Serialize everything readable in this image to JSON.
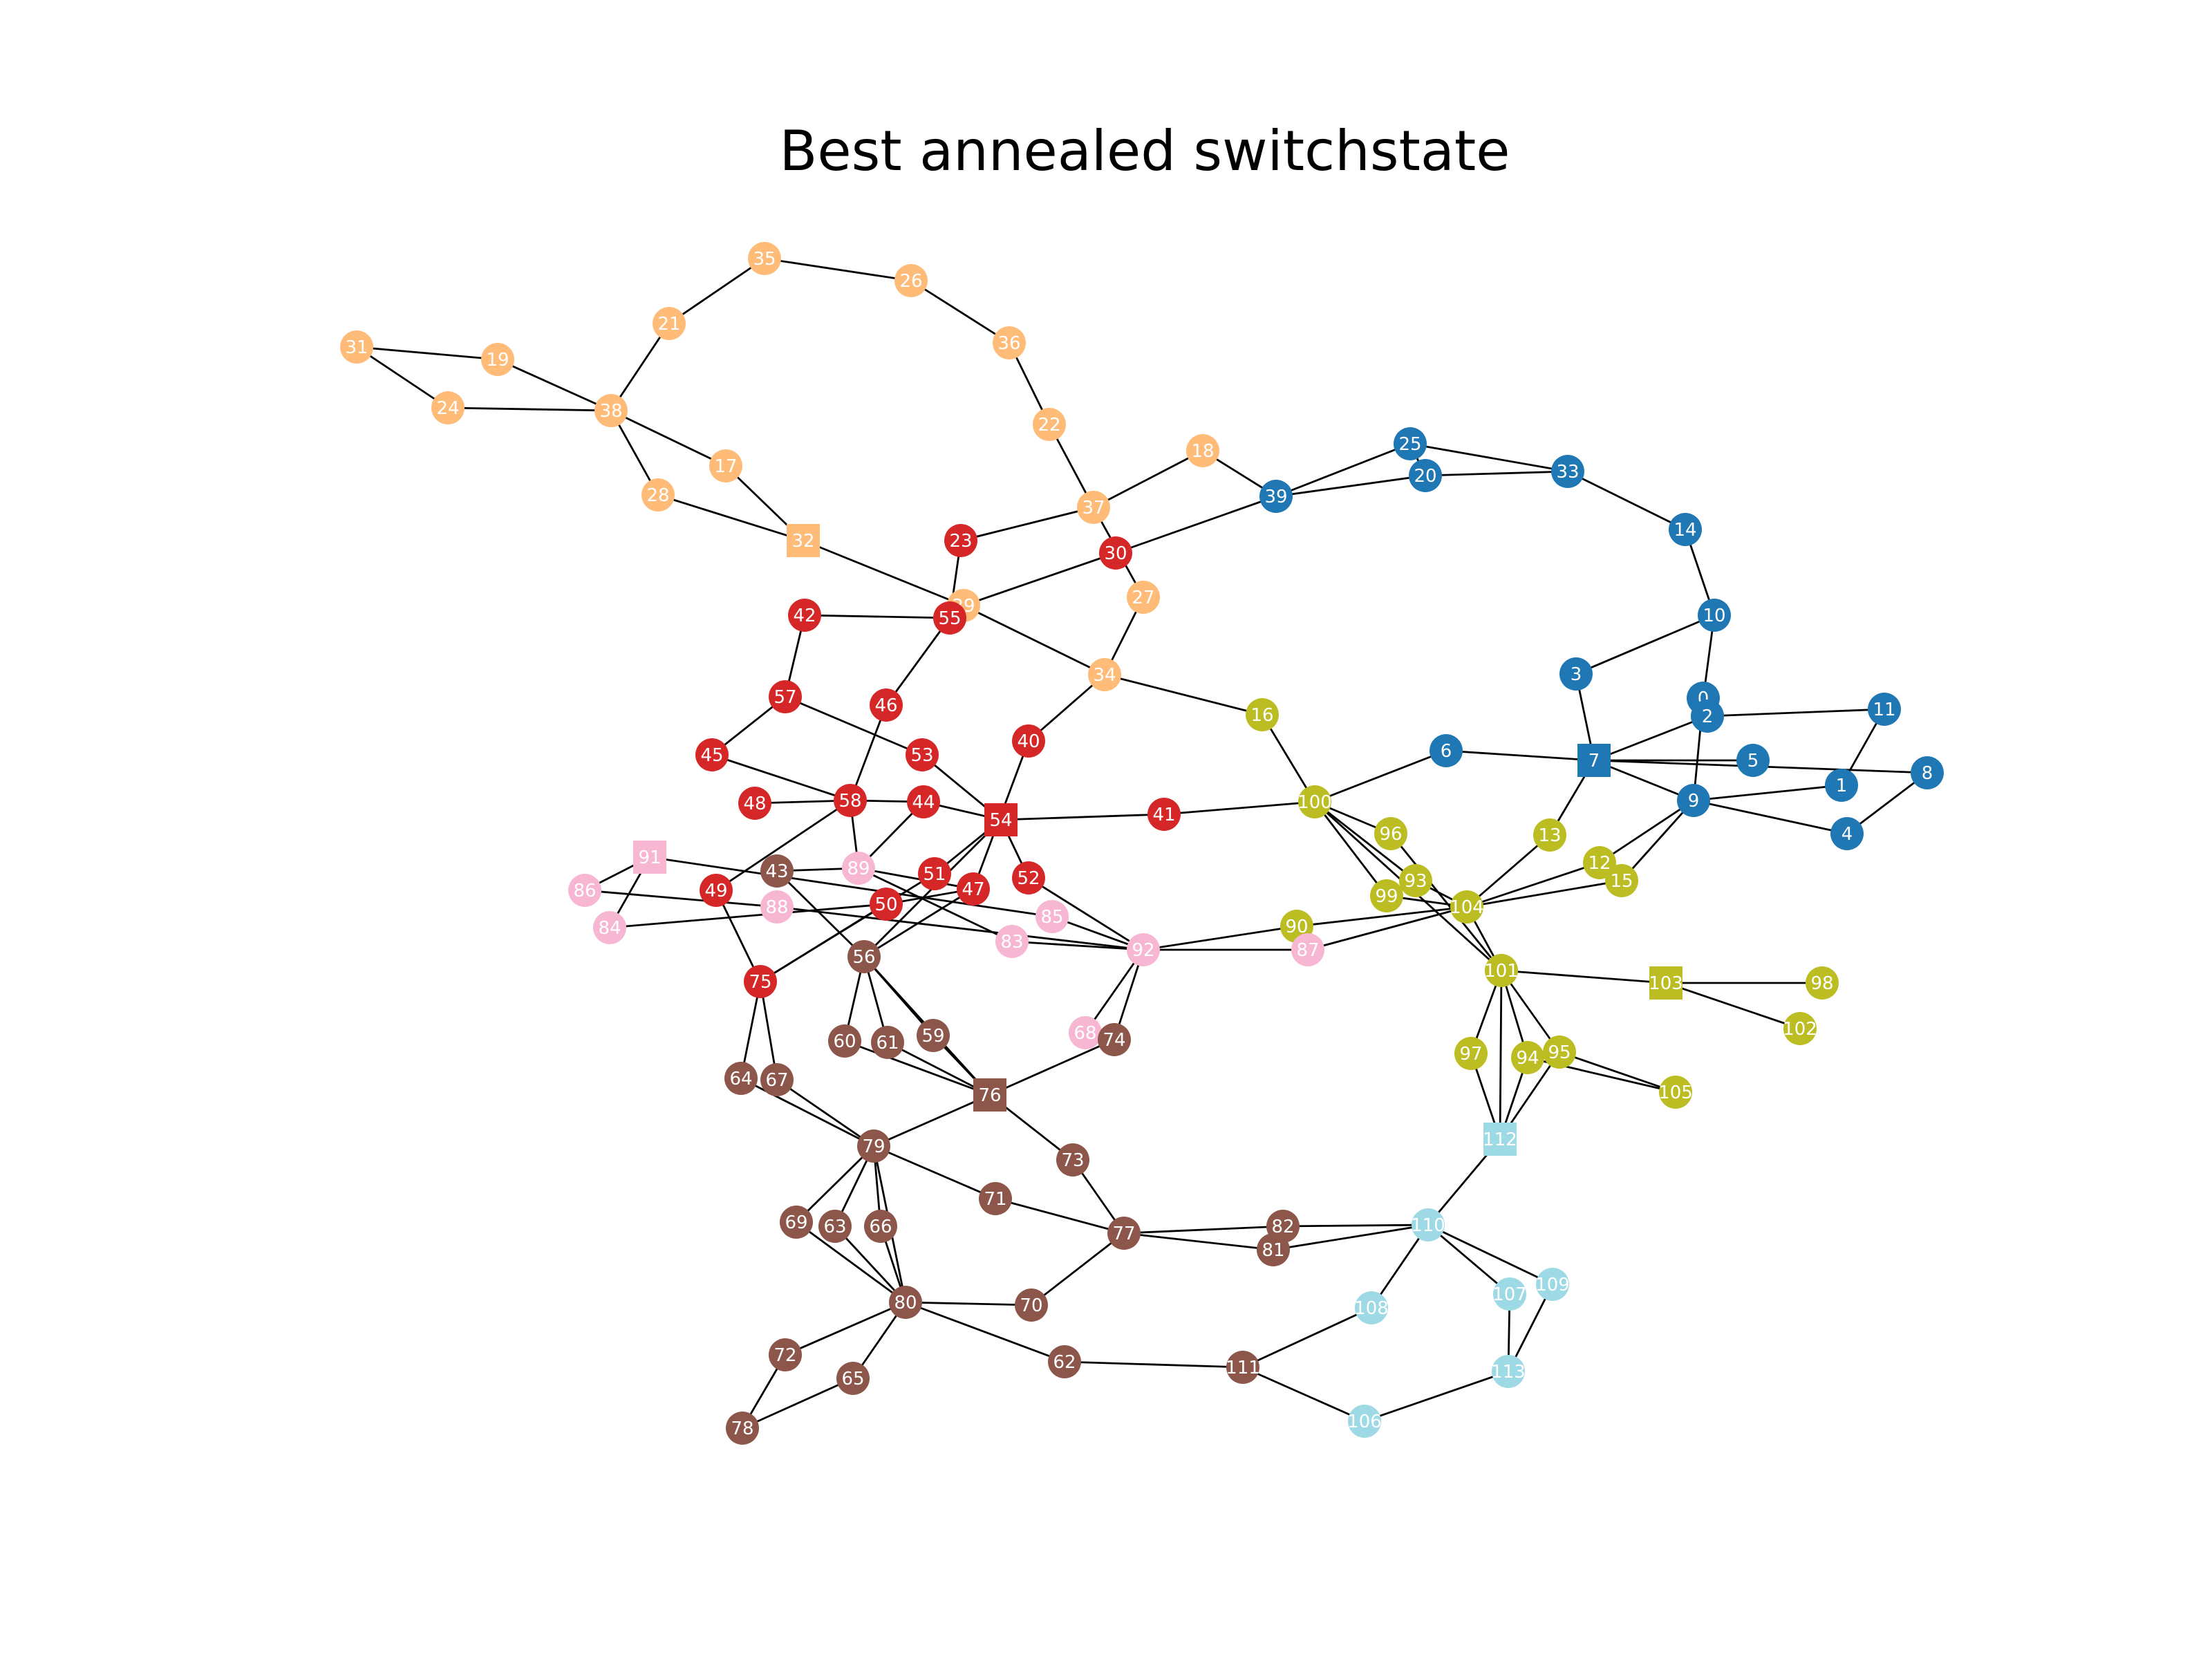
{
  "title": "Best annealed switchstate",
  "colors": {
    "blue": "#1f77b4",
    "orange": "#ffbb78",
    "red": "#d62728",
    "olive": "#bcbd22",
    "pink": "#f7b6d2",
    "brown": "#8c564b",
    "cyan": "#9edae5",
    "edge": "#000000",
    "label": "#ffffff"
  },
  "nodes": [
    {
      "id": "0",
      "group": "blue",
      "shape": "circle"
    },
    {
      "id": "1",
      "group": "blue",
      "shape": "circle"
    },
    {
      "id": "2",
      "group": "blue",
      "shape": "circle"
    },
    {
      "id": "3",
      "group": "blue",
      "shape": "circle"
    },
    {
      "id": "4",
      "group": "blue",
      "shape": "circle"
    },
    {
      "id": "5",
      "group": "blue",
      "shape": "circle"
    },
    {
      "id": "6",
      "group": "blue",
      "shape": "circle"
    },
    {
      "id": "7",
      "group": "blue",
      "shape": "square"
    },
    {
      "id": "8",
      "group": "blue",
      "shape": "circle"
    },
    {
      "id": "9",
      "group": "blue",
      "shape": "circle"
    },
    {
      "id": "10",
      "group": "blue",
      "shape": "circle"
    },
    {
      "id": "11",
      "group": "blue",
      "shape": "circle"
    },
    {
      "id": "14",
      "group": "blue",
      "shape": "circle"
    },
    {
      "id": "20",
      "group": "blue",
      "shape": "circle"
    },
    {
      "id": "25",
      "group": "blue",
      "shape": "circle"
    },
    {
      "id": "33",
      "group": "blue",
      "shape": "circle"
    },
    {
      "id": "39",
      "group": "blue",
      "shape": "circle"
    },
    {
      "id": "17",
      "group": "orange",
      "shape": "circle"
    },
    {
      "id": "18",
      "group": "orange",
      "shape": "circle"
    },
    {
      "id": "19",
      "group": "orange",
      "shape": "circle"
    },
    {
      "id": "21",
      "group": "orange",
      "shape": "circle"
    },
    {
      "id": "22",
      "group": "orange",
      "shape": "circle"
    },
    {
      "id": "24",
      "group": "orange",
      "shape": "circle"
    },
    {
      "id": "26",
      "group": "orange",
      "shape": "circle"
    },
    {
      "id": "27",
      "group": "orange",
      "shape": "circle"
    },
    {
      "id": "28",
      "group": "orange",
      "shape": "circle"
    },
    {
      "id": "29",
      "group": "orange",
      "shape": "circle"
    },
    {
      "id": "31",
      "group": "orange",
      "shape": "circle"
    },
    {
      "id": "32",
      "group": "orange",
      "shape": "square"
    },
    {
      "id": "34",
      "group": "orange",
      "shape": "circle"
    },
    {
      "id": "35",
      "group": "orange",
      "shape": "circle"
    },
    {
      "id": "36",
      "group": "orange",
      "shape": "circle"
    },
    {
      "id": "37",
      "group": "orange",
      "shape": "circle"
    },
    {
      "id": "38",
      "group": "orange",
      "shape": "circle"
    },
    {
      "id": "23",
      "group": "red",
      "shape": "circle"
    },
    {
      "id": "30",
      "group": "red",
      "shape": "circle"
    },
    {
      "id": "40",
      "group": "red",
      "shape": "circle"
    },
    {
      "id": "41",
      "group": "red",
      "shape": "circle"
    },
    {
      "id": "42",
      "group": "red",
      "shape": "circle"
    },
    {
      "id": "44",
      "group": "red",
      "shape": "circle"
    },
    {
      "id": "45",
      "group": "red",
      "shape": "circle"
    },
    {
      "id": "46",
      "group": "red",
      "shape": "circle"
    },
    {
      "id": "47",
      "group": "red",
      "shape": "circle"
    },
    {
      "id": "48",
      "group": "red",
      "shape": "circle"
    },
    {
      "id": "49",
      "group": "red",
      "shape": "circle"
    },
    {
      "id": "50",
      "group": "red",
      "shape": "circle"
    },
    {
      "id": "51",
      "group": "red",
      "shape": "circle"
    },
    {
      "id": "52",
      "group": "red",
      "shape": "circle"
    },
    {
      "id": "53",
      "group": "red",
      "shape": "circle"
    },
    {
      "id": "54",
      "group": "red",
      "shape": "square"
    },
    {
      "id": "55",
      "group": "red",
      "shape": "circle"
    },
    {
      "id": "57",
      "group": "red",
      "shape": "circle"
    },
    {
      "id": "58",
      "group": "red",
      "shape": "circle"
    },
    {
      "id": "75",
      "group": "red",
      "shape": "circle"
    },
    {
      "id": "12",
      "group": "olive",
      "shape": "circle"
    },
    {
      "id": "13",
      "group": "olive",
      "shape": "circle"
    },
    {
      "id": "15",
      "group": "olive",
      "shape": "circle"
    },
    {
      "id": "16",
      "group": "olive",
      "shape": "circle"
    },
    {
      "id": "90",
      "group": "olive",
      "shape": "circle"
    },
    {
      "id": "93",
      "group": "olive",
      "shape": "circle"
    },
    {
      "id": "94",
      "group": "olive",
      "shape": "circle"
    },
    {
      "id": "95",
      "group": "olive",
      "shape": "circle"
    },
    {
      "id": "96",
      "group": "olive",
      "shape": "circle"
    },
    {
      "id": "97",
      "group": "olive",
      "shape": "circle"
    },
    {
      "id": "98",
      "group": "olive",
      "shape": "circle"
    },
    {
      "id": "99",
      "group": "olive",
      "shape": "circle"
    },
    {
      "id": "100",
      "group": "olive",
      "shape": "circle"
    },
    {
      "id": "101",
      "group": "olive",
      "shape": "circle"
    },
    {
      "id": "102",
      "group": "olive",
      "shape": "circle"
    },
    {
      "id": "103",
      "group": "olive",
      "shape": "square"
    },
    {
      "id": "104",
      "group": "olive",
      "shape": "circle"
    },
    {
      "id": "105",
      "group": "olive",
      "shape": "circle"
    },
    {
      "id": "68",
      "group": "pink",
      "shape": "circle"
    },
    {
      "id": "83",
      "group": "pink",
      "shape": "circle"
    },
    {
      "id": "84",
      "group": "pink",
      "shape": "circle"
    },
    {
      "id": "85",
      "group": "pink",
      "shape": "circle"
    },
    {
      "id": "86",
      "group": "pink",
      "shape": "circle"
    },
    {
      "id": "87",
      "group": "pink",
      "shape": "circle"
    },
    {
      "id": "88",
      "group": "pink",
      "shape": "circle"
    },
    {
      "id": "89",
      "group": "pink",
      "shape": "circle"
    },
    {
      "id": "91",
      "group": "pink",
      "shape": "square"
    },
    {
      "id": "92",
      "group": "pink",
      "shape": "circle"
    },
    {
      "id": "43",
      "group": "brown",
      "shape": "circle"
    },
    {
      "id": "56",
      "group": "brown",
      "shape": "circle"
    },
    {
      "id": "59",
      "group": "brown",
      "shape": "circle"
    },
    {
      "id": "60",
      "group": "brown",
      "shape": "circle"
    },
    {
      "id": "61",
      "group": "brown",
      "shape": "circle"
    },
    {
      "id": "62",
      "group": "brown",
      "shape": "circle"
    },
    {
      "id": "63",
      "group": "brown",
      "shape": "circle"
    },
    {
      "id": "64",
      "group": "brown",
      "shape": "circle"
    },
    {
      "id": "65",
      "group": "brown",
      "shape": "circle"
    },
    {
      "id": "66",
      "group": "brown",
      "shape": "circle"
    },
    {
      "id": "67",
      "group": "brown",
      "shape": "circle"
    },
    {
      "id": "69",
      "group": "brown",
      "shape": "circle"
    },
    {
      "id": "70",
      "group": "brown",
      "shape": "circle"
    },
    {
      "id": "71",
      "group": "brown",
      "shape": "circle"
    },
    {
      "id": "72",
      "group": "brown",
      "shape": "circle"
    },
    {
      "id": "73",
      "group": "brown",
      "shape": "circle"
    },
    {
      "id": "74",
      "group": "brown",
      "shape": "circle"
    },
    {
      "id": "76",
      "group": "brown",
      "shape": "square"
    },
    {
      "id": "77",
      "group": "brown",
      "shape": "circle"
    },
    {
      "id": "78",
      "group": "brown",
      "shape": "circle"
    },
    {
      "id": "79",
      "group": "brown",
      "shape": "circle"
    },
    {
      "id": "80",
      "group": "brown",
      "shape": "circle"
    },
    {
      "id": "81",
      "group": "brown",
      "shape": "circle"
    },
    {
      "id": "82",
      "group": "brown",
      "shape": "circle"
    },
    {
      "id": "111",
      "group": "brown",
      "shape": "circle"
    },
    {
      "id": "106",
      "group": "cyan",
      "shape": "circle"
    },
    {
      "id": "107",
      "group": "cyan",
      "shape": "circle"
    },
    {
      "id": "108",
      "group": "cyan",
      "shape": "circle"
    },
    {
      "id": "109",
      "group": "cyan",
      "shape": "circle"
    },
    {
      "id": "110",
      "group": "cyan",
      "shape": "circle"
    },
    {
      "id": "112",
      "group": "cyan",
      "shape": "square"
    },
    {
      "id": "113",
      "group": "cyan",
      "shape": "circle"
    }
  ],
  "edges": [
    [
      "31",
      "19"
    ],
    [
      "31",
      "24"
    ],
    [
      "19",
      "38"
    ],
    [
      "24",
      "38"
    ],
    [
      "38",
      "21"
    ],
    [
      "21",
      "35"
    ],
    [
      "35",
      "26"
    ],
    [
      "26",
      "36"
    ],
    [
      "36",
      "22"
    ],
    [
      "22",
      "37"
    ],
    [
      "38",
      "28"
    ],
    [
      "38",
      "17"
    ],
    [
      "17",
      "32"
    ],
    [
      "28",
      "32"
    ],
    [
      "32",
      "29"
    ],
    [
      "29",
      "34"
    ],
    [
      "37",
      "18"
    ],
    [
      "18",
      "39"
    ],
    [
      "37",
      "23"
    ],
    [
      "23",
      "55"
    ],
    [
      "37",
      "27"
    ],
    [
      "27",
      "34"
    ],
    [
      "30",
      "29"
    ],
    [
      "30",
      "39"
    ],
    [
      "39",
      "25"
    ],
    [
      "39",
      "20"
    ],
    [
      "25",
      "20"
    ],
    [
      "25",
      "33"
    ],
    [
      "20",
      "33"
    ],
    [
      "33",
      "14"
    ],
    [
      "14",
      "10"
    ],
    [
      "10",
      "3"
    ],
    [
      "10",
      "0"
    ],
    [
      "3",
      "7"
    ],
    [
      "0",
      "9"
    ],
    [
      "2",
      "11"
    ],
    [
      "2",
      "7"
    ],
    [
      "11",
      "1"
    ],
    [
      "7",
      "5"
    ],
    [
      "7",
      "8"
    ],
    [
      "7",
      "9"
    ],
    [
      "9",
      "1"
    ],
    [
      "9",
      "4"
    ],
    [
      "4",
      "8"
    ],
    [
      "6",
      "7"
    ],
    [
      "100",
      "6"
    ],
    [
      "34",
      "40"
    ],
    [
      "34",
      "16"
    ],
    [
      "16",
      "100"
    ],
    [
      "40",
      "47"
    ],
    [
      "42",
      "55"
    ],
    [
      "42",
      "57"
    ],
    [
      "57",
      "45"
    ],
    [
      "57",
      "53"
    ],
    [
      "53",
      "54"
    ],
    [
      "55",
      "46"
    ],
    [
      "46",
      "58"
    ],
    [
      "45",
      "58"
    ],
    [
      "48",
      "58"
    ],
    [
      "58",
      "44"
    ],
    [
      "44",
      "54"
    ],
    [
      "54",
      "41"
    ],
    [
      "41",
      "100"
    ],
    [
      "44",
      "89"
    ],
    [
      "58",
      "49"
    ],
    [
      "58",
      "89"
    ],
    [
      "49",
      "75"
    ],
    [
      "75",
      "64"
    ],
    [
      "75",
      "67"
    ],
    [
      "75",
      "51"
    ],
    [
      "51",
      "54"
    ],
    [
      "54",
      "56"
    ],
    [
      "54",
      "52"
    ],
    [
      "52",
      "92"
    ],
    [
      "47",
      "89"
    ],
    [
      "47",
      "50"
    ],
    [
      "50",
      "84"
    ],
    [
      "86",
      "91"
    ],
    [
      "91",
      "84"
    ],
    [
      "86",
      "88"
    ],
    [
      "88",
      "92"
    ],
    [
      "91",
      "85"
    ],
    [
      "89",
      "83"
    ],
    [
      "43",
      "56"
    ],
    [
      "43",
      "89"
    ],
    [
      "56",
      "60"
    ],
    [
      "56",
      "61"
    ],
    [
      "56",
      "59"
    ],
    [
      "56",
      "76"
    ],
    [
      "59",
      "76"
    ],
    [
      "61",
      "76"
    ],
    [
      "60",
      "76"
    ],
    [
      "76",
      "74"
    ],
    [
      "76",
      "73"
    ],
    [
      "68",
      "92"
    ],
    [
      "74",
      "92"
    ],
    [
      "76",
      "79"
    ],
    [
      "67",
      "79"
    ],
    [
      "64",
      "79"
    ],
    [
      "79",
      "71"
    ],
    [
      "79",
      "69"
    ],
    [
      "79",
      "63"
    ],
    [
      "79",
      "66"
    ],
    [
      "79",
      "80"
    ],
    [
      "69",
      "80"
    ],
    [
      "63",
      "80"
    ],
    [
      "66",
      "80"
    ],
    [
      "71",
      "77"
    ],
    [
      "73",
      "77"
    ],
    [
      "77",
      "70"
    ],
    [
      "77",
      "82"
    ],
    [
      "77",
      "81"
    ],
    [
      "82",
      "110"
    ],
    [
      "81",
      "110"
    ],
    [
      "80",
      "70"
    ],
    [
      "80",
      "72"
    ],
    [
      "80",
      "65"
    ],
    [
      "80",
      "62"
    ],
    [
      "72",
      "78"
    ],
    [
      "65",
      "78"
    ],
    [
      "62",
      "111"
    ],
    [
      "111",
      "108"
    ],
    [
      "111",
      "106"
    ],
    [
      "106",
      "113"
    ],
    [
      "108",
      "110"
    ],
    [
      "110",
      "107"
    ],
    [
      "110",
      "109"
    ],
    [
      "110",
      "112"
    ],
    [
      "107",
      "113"
    ],
    [
      "109",
      "113"
    ],
    [
      "112",
      "101"
    ],
    [
      "112",
      "97"
    ],
    [
      "112",
      "95"
    ],
    [
      "112",
      "94"
    ],
    [
      "101",
      "97"
    ],
    [
      "101",
      "94"
    ],
    [
      "101",
      "95"
    ],
    [
      "101",
      "103"
    ],
    [
      "103",
      "98"
    ],
    [
      "103",
      "102"
    ],
    [
      "94",
      "105"
    ],
    [
      "95",
      "105"
    ],
    [
      "100",
      "96"
    ],
    [
      "100",
      "93"
    ],
    [
      "100",
      "99"
    ],
    [
      "100",
      "101"
    ],
    [
      "96",
      "101"
    ],
    [
      "99",
      "104"
    ],
    [
      "93",
      "104"
    ],
    [
      "104",
      "101"
    ],
    [
      "104",
      "13"
    ],
    [
      "13",
      "7"
    ],
    [
      "104",
      "12"
    ],
    [
      "104",
      "15"
    ],
    [
      "12",
      "9"
    ],
    [
      "15",
      "9"
    ],
    [
      "92",
      "90"
    ],
    [
      "92",
      "87"
    ],
    [
      "90",
      "104"
    ],
    [
      "87",
      "104"
    ],
    [
      "83",
      "92"
    ],
    [
      "85",
      "92"
    ],
    [
      "56",
      "47"
    ],
    [
      "75",
      "50"
    ]
  ]
}
